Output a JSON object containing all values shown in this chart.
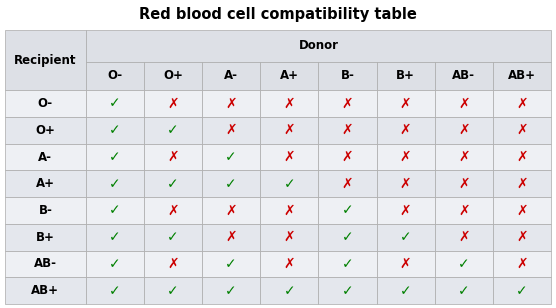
{
  "title": "Red blood cell compatibility table",
  "donor_label": "Donor",
  "recipient_label": "Recipient",
  "donor_types": [
    "O-",
    "O+",
    "A-",
    "A+",
    "B-",
    "B+",
    "AB-",
    "AB+"
  ],
  "recipient_types": [
    "O-",
    "O+",
    "A-",
    "A+",
    "B-",
    "B+",
    "AB-",
    "AB+"
  ],
  "compatibility": [
    [
      1,
      0,
      0,
      0,
      0,
      0,
      0,
      0
    ],
    [
      1,
      1,
      0,
      0,
      0,
      0,
      0,
      0
    ],
    [
      1,
      0,
      1,
      0,
      0,
      0,
      0,
      0
    ],
    [
      1,
      1,
      1,
      1,
      0,
      0,
      0,
      0
    ],
    [
      1,
      0,
      0,
      0,
      1,
      0,
      0,
      0
    ],
    [
      1,
      1,
      0,
      0,
      1,
      1,
      0,
      0
    ],
    [
      1,
      0,
      1,
      0,
      1,
      0,
      1,
      0
    ],
    [
      1,
      1,
      1,
      1,
      1,
      1,
      1,
      1
    ]
  ],
  "check_color": "#008000",
  "cross_color": "#cc0000",
  "header_bg": "#dde0e6",
  "row_bg_light": "#eef0f4",
  "row_bg_dark": "#e4e7ed",
  "border_color": "#aaaaaa",
  "title_bg": "#ffffff",
  "title_color": "#000000",
  "title_fontsize": 10.5,
  "header_fontsize": 8.5,
  "cell_fontsize": 10,
  "label_fontsize": 8.5,
  "fig_bg": "#ffffff"
}
